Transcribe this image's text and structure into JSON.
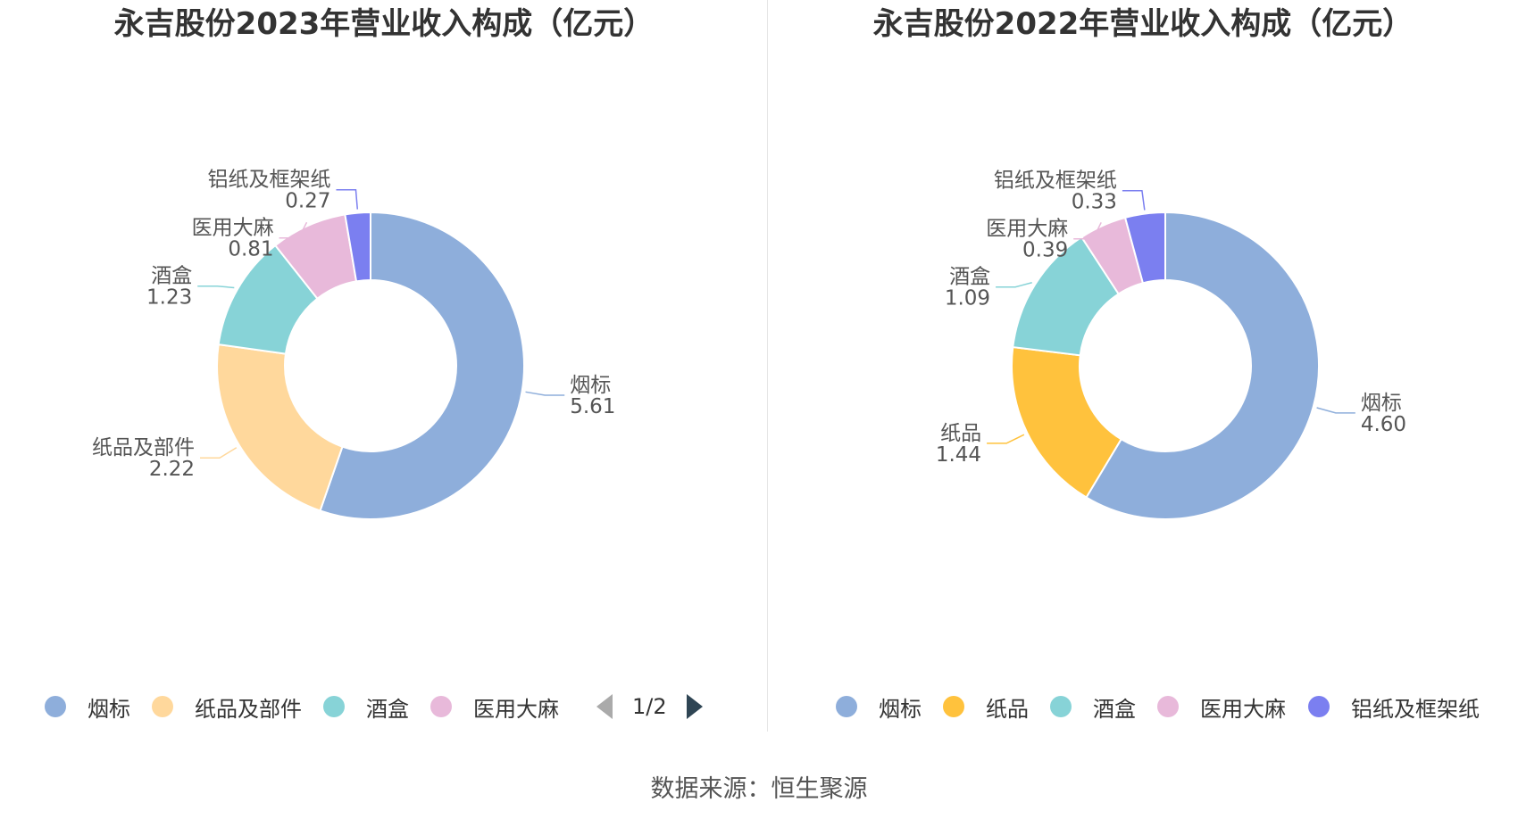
{
  "chart_data": [
    {
      "type": "pie",
      "variant": "donut",
      "title": "永吉股份2023年营业收入构成（亿元）",
      "categories": [
        "烟标",
        "纸品及部件",
        "酒盒",
        "医用大麻",
        "铝纸及框架纸"
      ],
      "values": [
        5.61,
        2.22,
        1.23,
        0.81,
        0.27
      ],
      "value_labels": [
        "5.61",
        "2.22",
        "1.23",
        "0.81",
        "0.27"
      ],
      "colors": [
        "#8eaedb",
        "#ffd89c",
        "#87d3d7",
        "#e8b9da",
        "#7b7ff0"
      ],
      "legend": {
        "position": "bottom",
        "visible_items": [
          "烟标",
          "纸品及部件",
          "酒盒",
          "医用大麻"
        ],
        "page_indicator": "1/2"
      }
    },
    {
      "type": "pie",
      "variant": "donut",
      "title": "永吉股份2022年营业收入构成（亿元）",
      "categories": [
        "烟标",
        "纸品",
        "酒盒",
        "医用大麻",
        "铝纸及框架纸"
      ],
      "values": [
        4.6,
        1.44,
        1.09,
        0.39,
        0.33
      ],
      "value_labels": [
        "4.60",
        "1.44",
        "1.09",
        "0.39",
        "0.33"
      ],
      "colors": [
        "#8eaedb",
        "#ffc23d",
        "#87d3d7",
        "#e8b9da",
        "#7b7ff0"
      ],
      "legend": {
        "position": "bottom",
        "visible_items": [
          "烟标",
          "纸品",
          "酒盒",
          "医用大麻",
          "铝纸及框架纸"
        ]
      }
    }
  ],
  "footer": {
    "source": "数据来源：恒生聚源"
  }
}
